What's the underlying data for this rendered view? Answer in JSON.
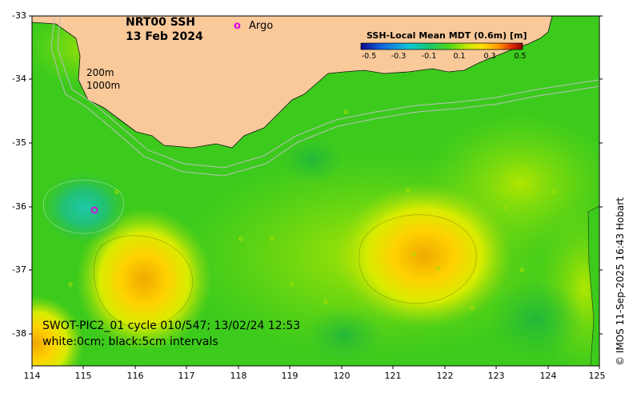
{
  "title": {
    "product": "NRT00 SSH",
    "date": "13 Feb 2024"
  },
  "legend": {
    "argo_symbol": "o",
    "argo_label": "Argo",
    "argo_color": "#e000e0"
  },
  "colorbar": {
    "title": "SSH-Local Mean MDT (0.6m) [m]",
    "ticks": [
      "-0.5",
      "-0.3",
      "-0.1",
      "0.1",
      "0.3",
      "0.5"
    ],
    "min": -0.5,
    "max": 0.5,
    "colors": [
      "#0a0a8c",
      "#1060e0",
      "#10c8d8",
      "#18c870",
      "#50d818",
      "#c8e800",
      "#ffe000",
      "#ff9a00",
      "#e03000",
      "#8c0000"
    ]
  },
  "depth_labels": {
    "d200": "200m",
    "d1000": "1000m"
  },
  "axes": {
    "x_ticks": [
      "114",
      "115",
      "116",
      "117",
      "118",
      "119",
      "120",
      "121",
      "122",
      "123",
      "124",
      "125"
    ],
    "y_ticks": [
      "-33",
      "-34",
      "-35",
      "-36",
      "-37",
      "-38"
    ],
    "lon_range": [
      114,
      125
    ],
    "lat_range": [
      -38.5,
      -33
    ]
  },
  "footer": {
    "mission": "SWOT-PIC2_01 cycle 010/547; 13/02/24 12:53",
    "contours": "white:0cm; black:5cm intervals"
  },
  "credit": "© IMOS 11-Sep-2025 16:43 Hobart",
  "colors": {
    "land": "#f9c99a",
    "base_sea": "#3ecb1c",
    "frame": "#000000"
  }
}
